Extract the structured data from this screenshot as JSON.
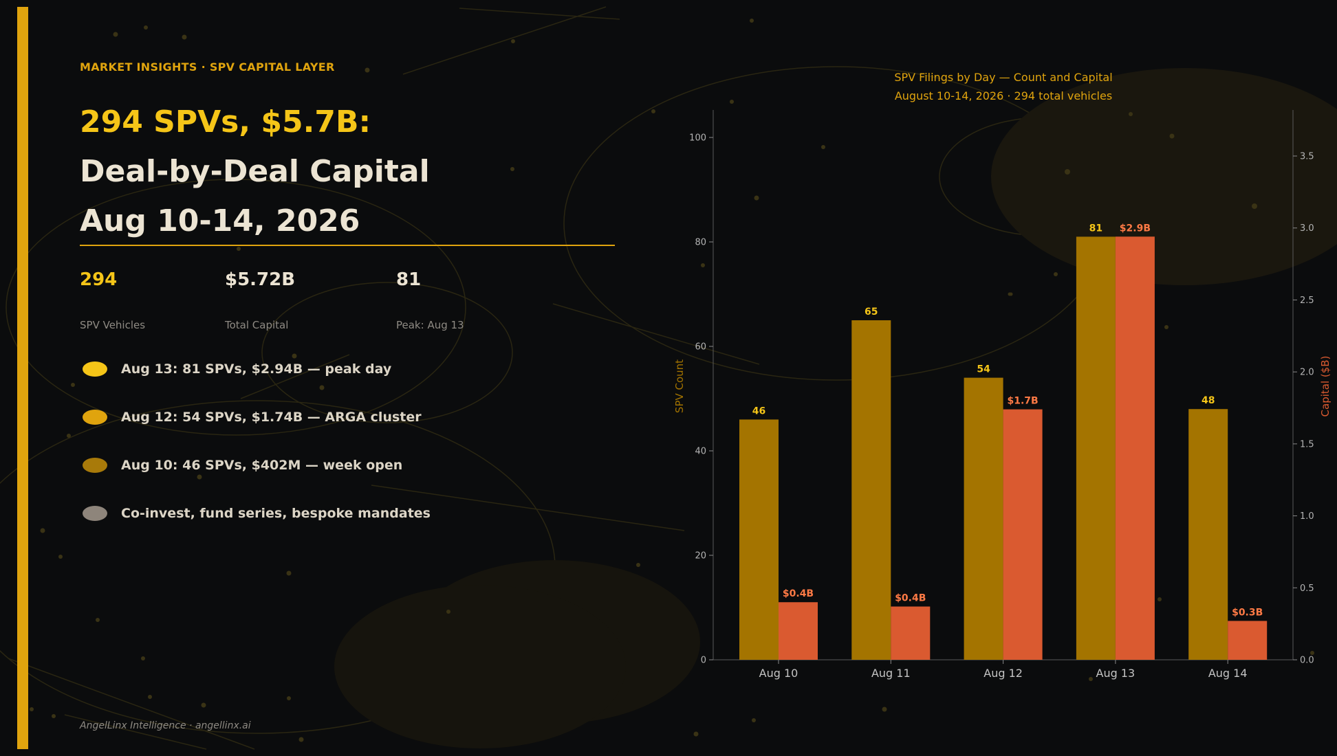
{
  "kicker": "MARKET INSIGHTS  ·  SPV CAPITAL LAYER",
  "headline": {
    "line1": "294 SPVs, $5.7B:",
    "line2": "Deal-by-Deal Capital",
    "line3": "Aug 10-14, 2026"
  },
  "stats": [
    {
      "value": "294",
      "label": "SPV Vehicles"
    },
    {
      "value": "$5.72B",
      "label": "Total Capital"
    },
    {
      "value": "81",
      "label": "Peak: Aug 13"
    }
  ],
  "bullets": [
    {
      "text": "Aug 13: 81 SPVs, $2.94B — peak day",
      "color": "#f5c518"
    },
    {
      "text": "Aug 12: 54 SPVs, $1.74B — ARGA cluster",
      "color": "#e0a40e"
    },
    {
      "text": "Aug 10: 46 SPVs, $402M — week open",
      "color": "#a87a0a"
    },
    {
      "text": "Co-invest, fund series, bespoke mandates",
      "color": "#8e857b"
    }
  ],
  "footer": "AngelLinx Intelligence  ·  angellinx.ai",
  "colors": {
    "accent": "#e0a40e",
    "headline_gold": "#f5c518",
    "count_bar": "#a47400",
    "capital_bar": "#da5a30",
    "count_label": "#f5c518",
    "capital_label": "#ff7a45"
  },
  "chart_data": {
    "type": "bar",
    "title": "SPV Filings by Day — Count and Capital",
    "subtitle": "August 10-14, 2026 · 294 total vehicles",
    "categories": [
      "Aug 10",
      "Aug 11",
      "Aug 12",
      "Aug 13",
      "Aug 14"
    ],
    "series": [
      {
        "values": [
          46,
          65,
          54,
          81,
          48
        ],
        "axis": "left",
        "data_labels": [
          "46",
          "65",
          "54",
          "81",
          "48"
        ]
      },
      {
        "values": [
          0.4,
          0.37,
          1.74,
          2.94,
          0.27
        ],
        "axis": "right",
        "data_labels": [
          "$0.4B",
          "$0.4B",
          "$1.7B",
          "$2.9B",
          "$0.3B"
        ]
      }
    ],
    "ylabel": "SPV Count",
    "y2label": "Capital ($B)",
    "ylim": [
      0,
      105
    ],
    "y2lim": [
      0,
      3.8
    ],
    "yticks": [
      0,
      20,
      40,
      60,
      80,
      100
    ],
    "y2ticks": [
      "0.0",
      "0.5",
      "1.0",
      "1.5",
      "2.0",
      "2.5",
      "3.0",
      "3.5"
    ],
    "grid": false,
    "legend": "none"
  }
}
